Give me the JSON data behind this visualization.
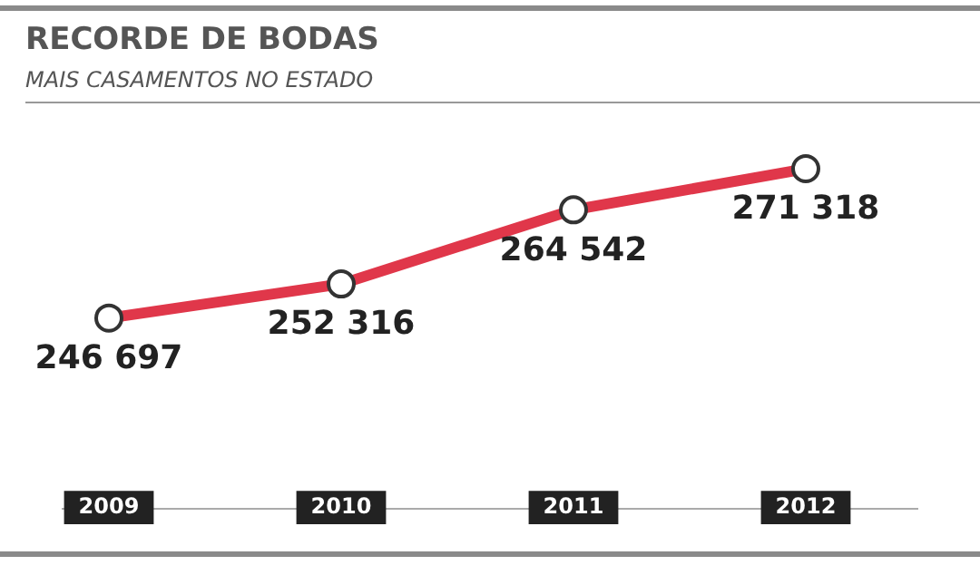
{
  "chart_data": {
    "type": "line",
    "title": "RECORDE DE BODAS",
    "subtitle": "MAIS CASAMENTOS NO ESTADO",
    "categories": [
      "2009",
      "2010",
      "2011",
      "2012"
    ],
    "series": [
      {
        "color": "#e0374a",
        "values": [
          246697,
          252316,
          264542,
          271318
        ],
        "value_labels": [
          "246 697",
          "252 316",
          "264 542",
          "271 318"
        ]
      }
    ],
    "marker": "circle",
    "grid": false
  }
}
